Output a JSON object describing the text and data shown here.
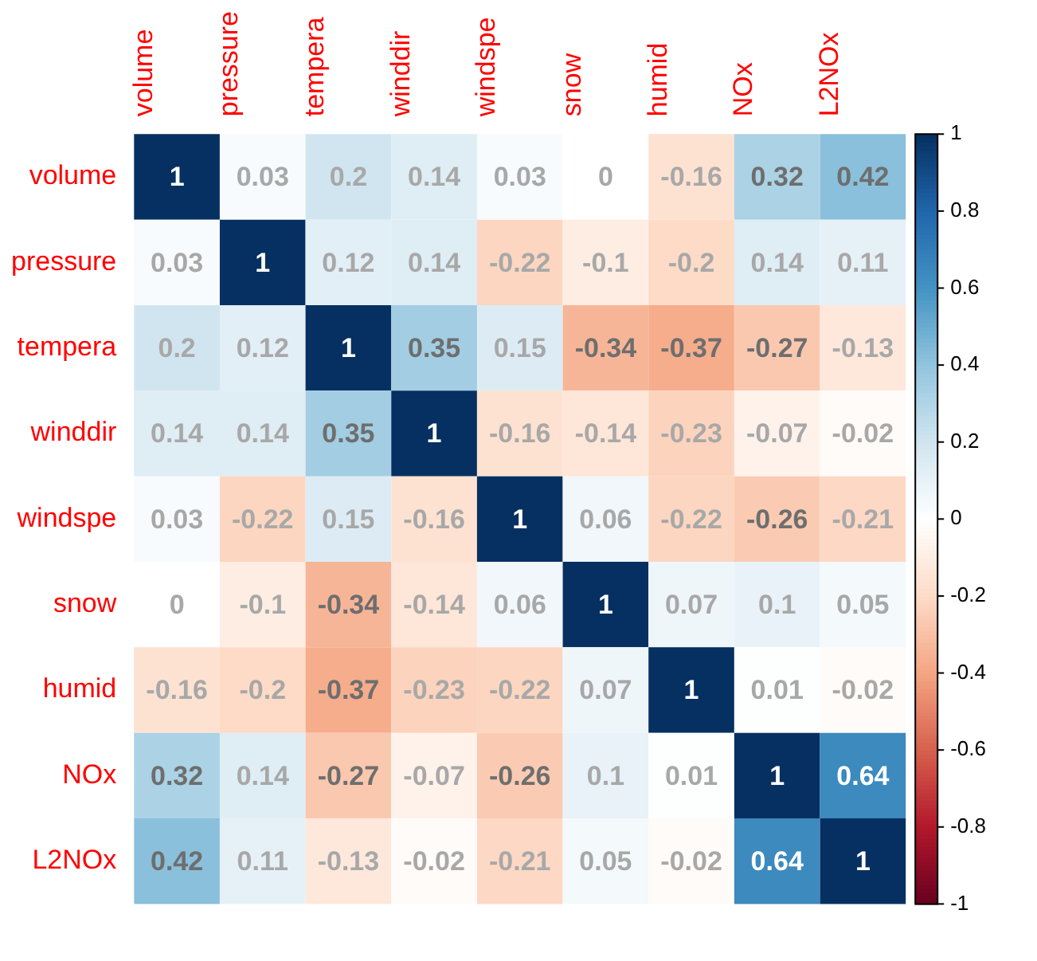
{
  "chart_data": {
    "type": "heatmap",
    "categories": [
      "volume",
      "pressure",
      "tempera",
      "winddir",
      "windspe",
      "snow",
      "humid",
      "NOx",
      "L2NOx"
    ],
    "y_categories": [
      "volume",
      "pressure",
      "tempera",
      "winddir",
      "windspe",
      "snow",
      "humid",
      "NOx",
      "L2NOx"
    ],
    "cells": [
      [
        1,
        0.03,
        0.2,
        0.14,
        0.03,
        0,
        -0.16,
        0.32,
        0.42
      ],
      [
        0.03,
        1,
        0.12,
        0.14,
        -0.22,
        -0.1,
        -0.2,
        0.14,
        0.11
      ],
      [
        0.2,
        0.12,
        1,
        0.35,
        0.15,
        -0.34,
        -0.37,
        -0.27,
        -0.13
      ],
      [
        0.14,
        0.14,
        0.35,
        1,
        -0.16,
        -0.14,
        -0.23,
        -0.07,
        -0.02
      ],
      [
        0.03,
        -0.22,
        0.15,
        -0.16,
        1,
        0.06,
        -0.22,
        -0.26,
        -0.21
      ],
      [
        0,
        -0.1,
        -0.34,
        -0.14,
        0.06,
        1,
        0.07,
        0.1,
        0.05
      ],
      [
        -0.16,
        -0.2,
        -0.37,
        -0.23,
        -0.22,
        0.07,
        1,
        0.01,
        -0.02
      ],
      [
        0.32,
        0.14,
        -0.27,
        -0.07,
        -0.26,
        0.1,
        0.01,
        1,
        0.64
      ],
      [
        0.42,
        0.11,
        -0.13,
        -0.02,
        -0.21,
        0.05,
        -0.02,
        0.64,
        1
      ]
    ],
    "data_labels": true,
    "clim": [
      -1,
      1
    ],
    "cticks": [
      -1,
      -0.8,
      -0.6,
      -0.4,
      -0.2,
      0,
      0.2,
      0.4,
      0.6,
      0.8,
      1
    ]
  }
}
